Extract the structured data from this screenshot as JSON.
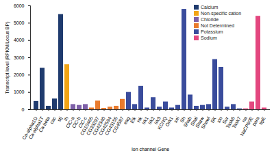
{
  "chart_data": {
    "type": "bar",
    "x_label": "Ion channel Gene",
    "y_label": "Transcript level (RPKM/Locus BP)",
    "categories": [
      "Ca-alpha1D",
      "Ca-alpha1T",
      "Ca-beta",
      "cac",
      "stj",
      "Ih",
      "ClC-a",
      "ClC-b",
      "ClC-c",
      "CG10465",
      "CG33297",
      "CG42340",
      "CG42594",
      "CG43155",
      "CG4587",
      "eag",
      "Elk",
      "Hk",
      "Irk1",
      "Irk2",
      "Irk3",
      "KCNQ",
      "Ork1",
      "sei",
      "Sh",
      "Shab",
      "Shal",
      "Shaw",
      "Shawl",
      "SK",
      "slo",
      "Sur",
      "Task6",
      "Task7",
      "na",
      "NaCP60E",
      "para",
      "tipE"
    ],
    "series": [
      {
        "name": "Calcium",
        "color": "#1f3b6e",
        "values": [
          480,
          2400,
          200,
          620,
          5500,
          null,
          null,
          null,
          null,
          null,
          null,
          null,
          null,
          null,
          null,
          null,
          null,
          null,
          null,
          null,
          null,
          null,
          null,
          null,
          null,
          null,
          null,
          null,
          null,
          null,
          null,
          null,
          null,
          null,
          null,
          null,
          null,
          null
        ]
      },
      {
        "name": "Non-specific cation",
        "color": "#f2a516",
        "values": [
          null,
          null,
          null,
          null,
          null,
          2600,
          null,
          null,
          null,
          null,
          null,
          null,
          null,
          null,
          null,
          null,
          null,
          null,
          null,
          null,
          null,
          null,
          null,
          null,
          null,
          null,
          null,
          null,
          null,
          null,
          null,
          null,
          null,
          null,
          null,
          null,
          null,
          null
        ]
      },
      {
        "name": "Chloride",
        "color": "#7d5fa8",
        "values": [
          null,
          null,
          null,
          null,
          null,
          null,
          300,
          250,
          300,
          null,
          null,
          null,
          null,
          null,
          null,
          null,
          null,
          null,
          null,
          null,
          null,
          null,
          null,
          null,
          null,
          null,
          null,
          null,
          null,
          null,
          null,
          null,
          null,
          null,
          null,
          null,
          null,
          null
        ]
      },
      {
        "name": "Not Determined",
        "color": "#e97b2d",
        "values": [
          null,
          null,
          null,
          null,
          null,
          null,
          null,
          null,
          null,
          100,
          500,
          80,
          150,
          200,
          600,
          null,
          null,
          null,
          null,
          null,
          null,
          null,
          null,
          null,
          null,
          null,
          null,
          null,
          null,
          null,
          null,
          null,
          null,
          null,
          null,
          null,
          null,
          null
        ]
      },
      {
        "name": "Potassium",
        "color": "#3a4c9c",
        "values": [
          null,
          null,
          null,
          null,
          null,
          null,
          null,
          null,
          null,
          null,
          null,
          null,
          null,
          null,
          null,
          1000,
          300,
          1350,
          100,
          700,
          150,
          450,
          100,
          250,
          5800,
          850,
          200,
          250,
          300,
          2900,
          2450,
          150,
          300,
          50,
          null,
          null,
          null,
          null
        ]
      },
      {
        "name": "Sodium",
        "color": "#e3477f",
        "values": [
          null,
          null,
          null,
          null,
          null,
          null,
          null,
          null,
          null,
          null,
          null,
          null,
          null,
          null,
          null,
          null,
          null,
          null,
          null,
          null,
          null,
          null,
          null,
          null,
          null,
          null,
          null,
          null,
          null,
          null,
          null,
          null,
          null,
          null,
          50,
          450,
          5400,
          100
        ]
      }
    ],
    "ylim": [
      0,
      6000
    ],
    "yticks": [
      0,
      1000,
      2000,
      3000,
      4000,
      5000,
      6000
    ],
    "grid": false,
    "legend": "upper right"
  }
}
